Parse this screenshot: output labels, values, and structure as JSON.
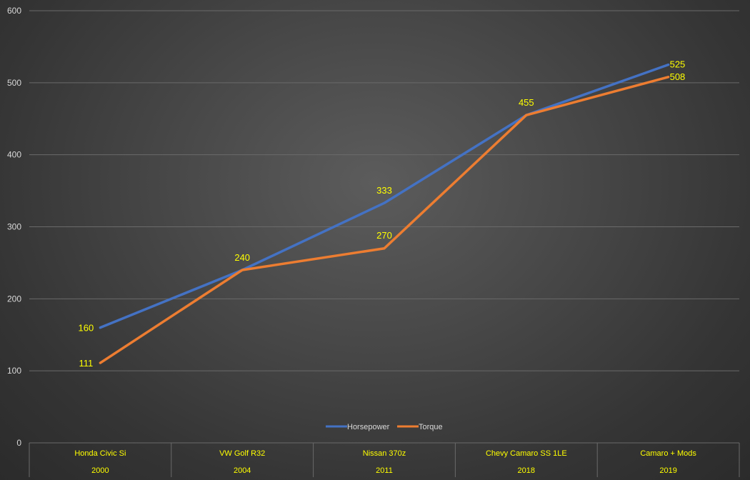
{
  "chart_data": {
    "type": "line",
    "categories": [
      [
        "Honda Civic Si",
        "2000"
      ],
      [
        "VW Golf R32",
        "2004"
      ],
      [
        "Nissan 370z",
        "2011"
      ],
      [
        "Chevy Camaro SS 1LE",
        "2018"
      ],
      [
        "Camaro + Mods",
        "2019"
      ]
    ],
    "series": [
      {
        "name": "Horsepower",
        "color": "#4472c4",
        "values": [
          160,
          240,
          333,
          455,
          525
        ]
      },
      {
        "name": "Torque",
        "color": "#ed7d31",
        "values": [
          111,
          240,
          270,
          455,
          508
        ]
      }
    ],
    "ylim": [
      0,
      600
    ],
    "yticks": [
      "0",
      "100",
      "200",
      "300",
      "400",
      "500",
      "600"
    ],
    "data_labels": {
      "Horsepower": [
        "160",
        "240",
        "333",
        "455",
        "525"
      ],
      "Torque": [
        "111",
        "",
        "270",
        "",
        "508"
      ]
    },
    "grid": true,
    "legend_position": "bottom",
    "label_color": "#ffff00"
  }
}
